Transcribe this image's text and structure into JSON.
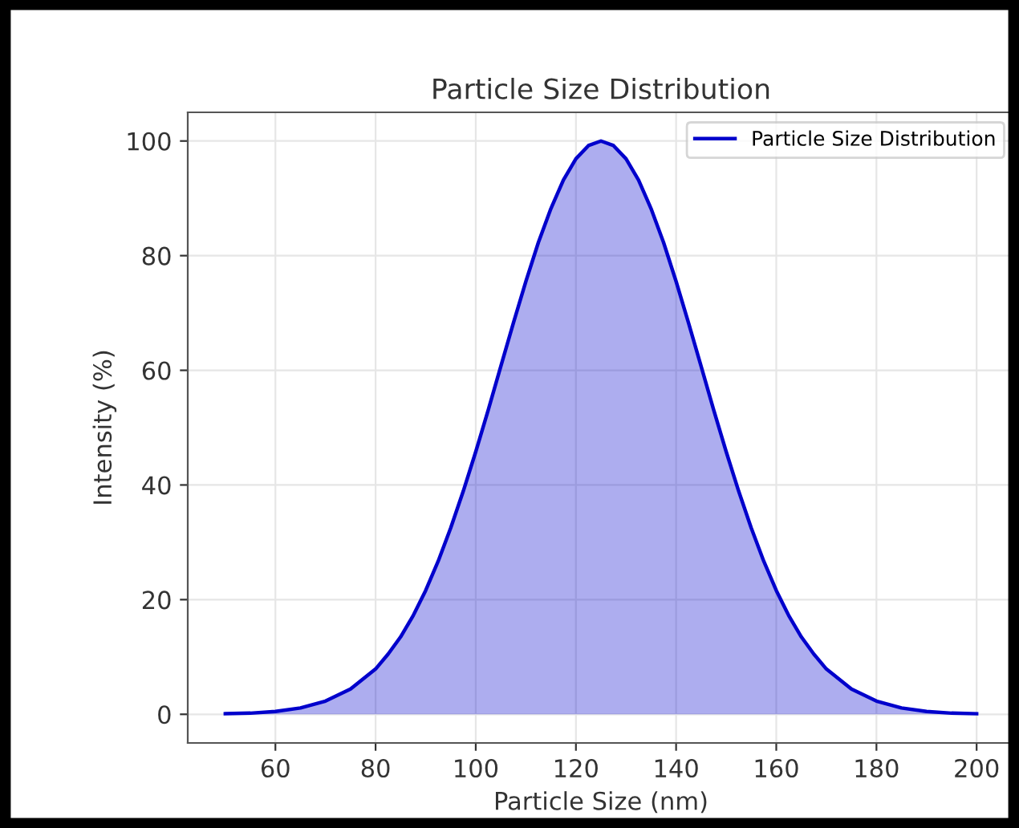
{
  "chart_data": {
    "type": "area",
    "title": "Particle Size Distribution",
    "xlabel": "Particle Size (nm)",
    "ylabel": "Intensity (%)",
    "x": [
      50,
      55,
      60,
      65,
      70,
      75,
      80,
      82.5,
      85,
      87.5,
      90,
      92.5,
      95,
      97.5,
      100,
      102.5,
      105,
      107.5,
      110,
      112.5,
      115,
      117.5,
      120,
      122.5,
      125,
      127.5,
      130,
      132.5,
      135,
      137.5,
      140,
      142.5,
      145,
      147.5,
      150,
      152.5,
      155,
      157.5,
      160,
      162.5,
      165,
      167.5,
      170,
      175,
      180,
      185,
      190,
      195,
      200
    ],
    "series": [
      {
        "name": "Particle Size Distribution",
        "color": "#0000cc",
        "values": [
          0.1,
          0.2,
          0.5,
          1.1,
          2.3,
          4.4,
          7.9,
          10.5,
          13.5,
          17.2,
          21.6,
          26.7,
          32.5,
          38.9,
          45.8,
          53.1,
          60.7,
          68.2,
          75.5,
          82.3,
          88.2,
          93.2,
          96.9,
          99.2,
          100,
          99.2,
          96.9,
          93.2,
          88.2,
          82.3,
          75.5,
          68.2,
          60.7,
          53.1,
          45.8,
          38.9,
          32.5,
          26.7,
          21.6,
          17.2,
          13.5,
          10.5,
          7.9,
          4.4,
          2.3,
          1.1,
          0.5,
          0.2,
          0.1
        ]
      }
    ],
    "xlim": [
      42.5,
      207.5
    ],
    "xticks": [
      60,
      80,
      100,
      120,
      140,
      160,
      180,
      200
    ],
    "ylim": [
      -5,
      105
    ],
    "yticks": [
      0,
      20,
      40,
      60,
      80,
      100
    ],
    "grid": true,
    "legend": "top right",
    "line_style": "solid",
    "marker": "none"
  }
}
